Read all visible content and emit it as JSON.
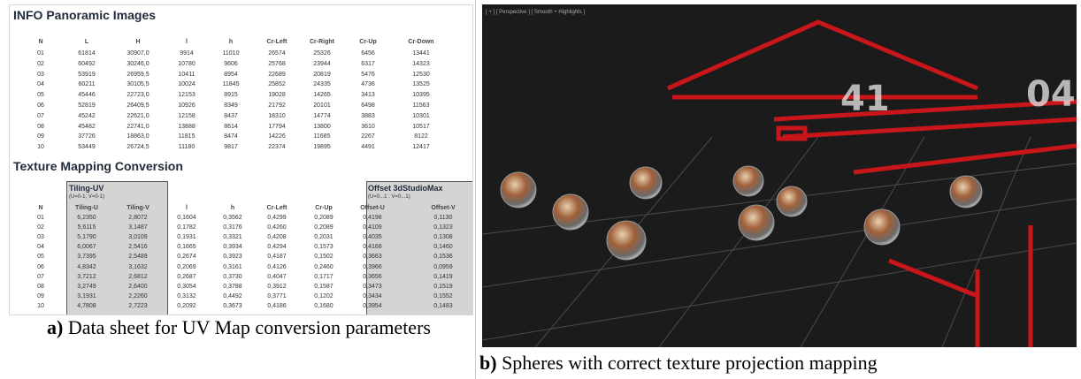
{
  "panel_a": {
    "table1": {
      "title": "INFO Panoramic Images",
      "columns": [
        "N",
        "L",
        "H",
        "l",
        "h",
        "Cr-Left",
        "Cr-Right",
        "Cr-Up",
        "Cr-Down"
      ],
      "rows": [
        [
          "01",
          "61814",
          "30907,0",
          "9914",
          "11010",
          "26574",
          "25326",
          "6456",
          "13441"
        ],
        [
          "02",
          "60492",
          "30246,0",
          "10780",
          "9606",
          "25768",
          "23944",
          "6317",
          "14323"
        ],
        [
          "03",
          "53919",
          "26959,5",
          "10411",
          "8954",
          "22689",
          "20819",
          "5476",
          "12530"
        ],
        [
          "04",
          "60211",
          "30105,5",
          "10024",
          "11845",
          "25852",
          "24335",
          "4736",
          "13525"
        ],
        [
          "05",
          "45446",
          "22723,0",
          "12153",
          "8915",
          "19028",
          "14265",
          "3413",
          "10395"
        ],
        [
          "06",
          "52819",
          "26409,5",
          "10926",
          "8349",
          "21792",
          "20101",
          "6498",
          "11563"
        ],
        [
          "07",
          "45242",
          "22621,0",
          "12158",
          "8437",
          "18310",
          "14774",
          "3883",
          "10301"
        ],
        [
          "08",
          "45482",
          "22741,0",
          "13888",
          "8614",
          "17794",
          "13800",
          "3610",
          "10517"
        ],
        [
          "09",
          "37726",
          "18863,0",
          "11815",
          "8474",
          "14226",
          "11685",
          "2267",
          "8122"
        ],
        [
          "10",
          "53449",
          "26724,5",
          "11180",
          "9817",
          "22374",
          "19895",
          "4491",
          "12417"
        ]
      ]
    },
    "table2": {
      "title": "Texture Mapping Conversion",
      "group_left": "Tiling-UV",
      "group_left_note": "(U=0-1; V=0-1)",
      "group_right": "Offset 3dStudioMax",
      "group_right_note": "(U=0...1 ; V=0...1)",
      "columns": [
        "N",
        "Tiling-U",
        "Tiling-V",
        "l",
        "h",
        "Cr-Left",
        "Cr-Up",
        "Offset-U",
        "Offset-V"
      ],
      "rows": [
        [
          "01",
          "6,2350",
          "2,8072",
          "0,1604",
          "0,3562",
          "0,4299",
          "0,2089",
          "0,4198",
          "0,1130"
        ],
        [
          "02",
          "5,6115",
          "3,1487",
          "0,1782",
          "0,3176",
          "0,4260",
          "0,2089",
          "0,4109",
          "0,1323"
        ],
        [
          "03",
          "5,1790",
          "3,0109",
          "0,1931",
          "0,3321",
          "0,4208",
          "0,2031",
          "0,4035",
          "0,1308"
        ],
        [
          "04",
          "6,0067",
          "2,5416",
          "0,1665",
          "0,3934",
          "0,4294",
          "0,1573",
          "0,4168",
          "0,1460"
        ],
        [
          "05",
          "3,7395",
          "2,5489",
          "0,2674",
          "0,3923",
          "0,4187",
          "0,1502",
          "0,3663",
          "0,1536"
        ],
        [
          "06",
          "4,8342",
          "3,1632",
          "0,2069",
          "0,3161",
          "0,4126",
          "0,2460",
          "0,3966",
          "0,0959"
        ],
        [
          "07",
          "3,7212",
          "2,6812",
          "0,2687",
          "0,3730",
          "0,4047",
          "0,1717",
          "0,3656",
          "0,1419"
        ],
        [
          "08",
          "3,2749",
          "2,6400",
          "0,3054",
          "0,3788",
          "0,3912",
          "0,1587",
          "0,3473",
          "0,1519"
        ],
        [
          "09",
          "3,1931",
          "2,2260",
          "0,3132",
          "0,4492",
          "0,3771",
          "0,1202",
          "0,3434",
          "0,1552"
        ],
        [
          "10",
          "4,7808",
          "2,7223",
          "0,2092",
          "0,3673",
          "0,4186",
          "0,1680",
          "0,3954",
          "0,1483"
        ]
      ]
    },
    "caption_label": "a)",
    "caption": "Data sheet for UV Map conversion parameters"
  },
  "panel_b": {
    "viewport_label": "[ + ] [ Perspective ] [ Smooth + Highlights ]",
    "caption_label": "b)",
    "caption": "Spheres with correct texture projection mapping"
  }
}
